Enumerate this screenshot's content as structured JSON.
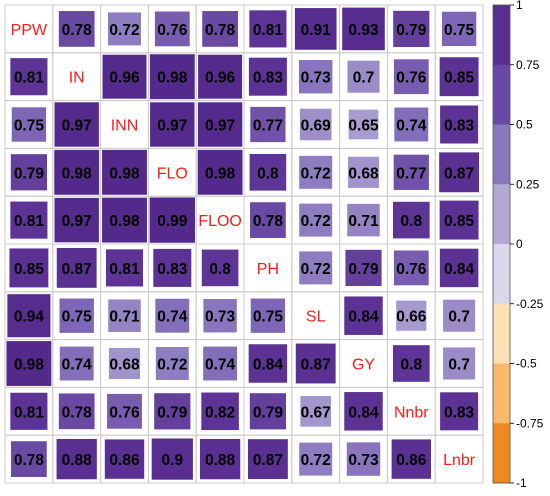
{
  "chart_data": {
    "type": "heatmap",
    "variables": [
      "PPW",
      "IN",
      "INN",
      "FLO",
      "FLOO",
      "PH",
      "SL",
      "GY",
      "Nnbr",
      "Lnbr"
    ],
    "matrix": [
      [
        null,
        0.78,
        0.72,
        0.76,
        0.78,
        0.81,
        0.91,
        0.93,
        0.79,
        0.75
      ],
      [
        0.81,
        null,
        0.96,
        0.98,
        0.96,
        0.83,
        0.73,
        0.7,
        0.76,
        0.85
      ],
      [
        0.75,
        0.97,
        null,
        0.97,
        0.97,
        0.77,
        0.69,
        0.65,
        0.74,
        0.83
      ],
      [
        0.79,
        0.98,
        0.98,
        null,
        0.98,
        0.8,
        0.72,
        0.68,
        0.77,
        0.87
      ],
      [
        0.81,
        0.97,
        0.98,
        0.99,
        null,
        0.78,
        0.72,
        0.71,
        0.8,
        0.85
      ],
      [
        0.85,
        0.87,
        0.81,
        0.83,
        0.8,
        null,
        0.72,
        0.79,
        0.76,
        0.84
      ],
      [
        0.94,
        0.75,
        0.71,
        0.74,
        0.73,
        0.75,
        null,
        0.84,
        0.66,
        0.7
      ],
      [
        0.98,
        0.74,
        0.68,
        0.72,
        0.74,
        0.84,
        0.87,
        null,
        0.8,
        0.7
      ],
      [
        0.81,
        0.78,
        0.76,
        0.79,
        0.82,
        0.79,
        0.67,
        0.84,
        null,
        0.83
      ],
      [
        0.78,
        0.88,
        0.86,
        0.9,
        0.88,
        0.87,
        0.72,
        0.73,
        0.86,
        null
      ]
    ],
    "labels": [
      [
        null,
        "0.78",
        "0.72",
        "0.76",
        "0.78",
        "0.81",
        "0.91",
        "0.93",
        "0.79",
        "0.75"
      ],
      [
        "0.81",
        null,
        "0.96",
        "0.98",
        "0.96",
        "0.83",
        "0.73",
        "0.7",
        "0.76",
        "0.85"
      ],
      [
        "0.75",
        "0.97",
        null,
        "0.97",
        "0.97",
        "0.77",
        "0.69",
        "0.65",
        "0.74",
        "0.83"
      ],
      [
        "0.79",
        "0.98",
        "0.98",
        null,
        "0.98",
        "0.8",
        "0.72",
        "0.68",
        "0.77",
        "0.87"
      ],
      [
        "0.81",
        "0.97",
        "0.98",
        "0.99",
        null,
        "0.78",
        "0.72",
        "0.71",
        "0.8",
        "0.85"
      ],
      [
        "0.85",
        "0.87",
        "0.81",
        "0.83",
        "0.8",
        null,
        "0.72",
        "0.79",
        "0.76",
        "0.84"
      ],
      [
        "0.94",
        "0.75",
        "0.71",
        "0.74",
        "0.73",
        "0.75",
        null,
        "0.84",
        "0.66",
        "0.7"
      ],
      [
        "0.98",
        "0.74",
        "0.68",
        "0.72",
        "0.74",
        "0.84",
        "0.87",
        null,
        "0.8",
        "0.7"
      ],
      [
        "0.81",
        "0.78",
        "0.76",
        "0.79",
        "0.82",
        "0.79",
        "0.67",
        "0.84",
        null,
        "0.83"
      ],
      [
        "0.78",
        "0.88",
        "0.86",
        "0.9",
        "0.88",
        "0.87",
        "0.72",
        "0.73",
        "0.86",
        null
      ]
    ],
    "color_scale": {
      "range": [
        -1,
        1
      ],
      "ticks": [
        1,
        0.75,
        0.5,
        0.25,
        0,
        -0.25,
        -0.5,
        -0.75,
        -1
      ],
      "tick_labels": [
        "1",
        "0.75",
        "0.5",
        "0.25",
        "0",
        "-0.25",
        "-0.5",
        "-0.75",
        "-1"
      ],
      "colors_top_to_bottom": [
        "#5a2d91",
        "#6a48a8",
        "#8a78bc",
        "#b2a8d2",
        "#dcd8ec",
        "#fde0b4",
        "#f9b86a",
        "#ef8a20",
        "#c95e08"
      ]
    },
    "colors": {
      "diagonal_label": "#ff1a1a",
      "cell_value_text": "#000000",
      "grid_border": "#cccccc",
      "diagonal_fill": "#ffffff"
    },
    "title": "",
    "xlabel": "",
    "ylabel": "",
    "legend_placement": "right"
  }
}
